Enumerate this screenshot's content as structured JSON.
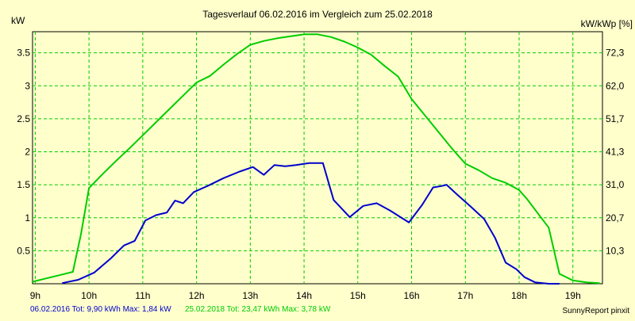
{
  "chart_data": {
    "type": "line",
    "title": "Tagesverlauf 06.02.2016 im Vergleich zum 25.02.2018",
    "ylabel_left": "kW",
    "ylabel_right": "kW/kWp [%]",
    "xlim": [
      8.95,
      19.55
    ],
    "ylim": [
      0,
      3.82
    ],
    "grid": true,
    "x_ticks": [
      {
        "value": 9,
        "label": "9h"
      },
      {
        "value": 10,
        "label": "10h"
      },
      {
        "value": 11,
        "label": "11h"
      },
      {
        "value": 12,
        "label": "12h"
      },
      {
        "value": 13,
        "label": "13h"
      },
      {
        "value": 14,
        "label": "14h"
      },
      {
        "value": 15,
        "label": "15h"
      },
      {
        "value": 16,
        "label": "16h"
      },
      {
        "value": 17,
        "label": "17h"
      },
      {
        "value": 18,
        "label": "18h"
      },
      {
        "value": 19,
        "label": "19h"
      }
    ],
    "y_ticks_left": [
      {
        "value": 0.5,
        "label": "0.5"
      },
      {
        "value": 1,
        "label": "1"
      },
      {
        "value": 1.5,
        "label": "1.5"
      },
      {
        "value": 2,
        "label": "2"
      },
      {
        "value": 2.5,
        "label": "2.5"
      },
      {
        "value": 3,
        "label": "3"
      },
      {
        "value": 3.5,
        "label": "3.5"
      }
    ],
    "y_ticks_right": [
      {
        "value": 0.5,
        "label": "10,3"
      },
      {
        "value": 1,
        "label": "20,7"
      },
      {
        "value": 1.5,
        "label": "31,0"
      },
      {
        "value": 2,
        "label": "41,3"
      },
      {
        "value": 2.5,
        "label": "51,7"
      },
      {
        "value": 3,
        "label": "62,0"
      },
      {
        "value": 3.5,
        "label": "72,3"
      }
    ],
    "series": [
      {
        "key": "2016",
        "color": "#0000cc",
        "x": [
          9.5,
          9.8,
          10.1,
          10.4,
          10.65,
          10.85,
          11.05,
          11.25,
          11.45,
          11.6,
          11.75,
          11.95,
          12.2,
          12.5,
          12.8,
          13.05,
          13.25,
          13.45,
          13.65,
          13.85,
          14.1,
          14.25,
          14.35,
          14.55,
          14.85,
          15.1,
          15.35,
          15.6,
          15.85,
          15.95,
          16.2,
          16.4,
          16.55,
          16.65,
          16.85,
          17.1,
          17.35,
          17.55,
          17.75,
          17.95,
          18.1,
          18.3,
          18.55,
          18.75
        ],
        "y": [
          0.01,
          0.06,
          0.17,
          0.38,
          0.58,
          0.65,
          0.96,
          1.04,
          1.08,
          1.26,
          1.22,
          1.39,
          1.48,
          1.6,
          1.7,
          1.77,
          1.65,
          1.8,
          1.78,
          1.8,
          1.83,
          1.83,
          1.83,
          1.27,
          1.01,
          1.18,
          1.22,
          1.11,
          0.98,
          0.93,
          1.2,
          1.46,
          1.48,
          1.5,
          1.35,
          1.17,
          0.98,
          0.7,
          0.32,
          0.22,
          0.1,
          0.02,
          0.0,
          0.0
        ]
      },
      {
        "key": "2018",
        "color": "#00cc00",
        "x": [
          8.95,
          9.2,
          9.45,
          9.7,
          9.85,
          10.0,
          10.25,
          10.5,
          10.75,
          11.0,
          11.25,
          11.5,
          11.75,
          12.0,
          12.25,
          12.5,
          12.75,
          13.0,
          13.25,
          13.5,
          13.75,
          14.0,
          14.25,
          14.5,
          14.75,
          15.0,
          15.25,
          15.5,
          15.75,
          16.0,
          16.25,
          16.5,
          16.75,
          17.0,
          17.25,
          17.5,
          17.75,
          18.0,
          18.15,
          18.3,
          18.55,
          18.75,
          19.0,
          19.25,
          19.5
        ],
        "y": [
          0.03,
          0.08,
          0.13,
          0.18,
          0.75,
          1.45,
          1.66,
          1.86,
          2.05,
          2.25,
          2.45,
          2.65,
          2.85,
          3.05,
          3.15,
          3.32,
          3.48,
          3.62,
          3.68,
          3.72,
          3.75,
          3.78,
          3.78,
          3.74,
          3.67,
          3.58,
          3.47,
          3.3,
          3.14,
          2.8,
          2.55,
          2.3,
          2.05,
          1.82,
          1.72,
          1.6,
          1.53,
          1.42,
          1.28,
          1.12,
          0.85,
          0.15,
          0.05,
          0.02,
          0.01
        ]
      }
    ],
    "footer": {
      "series1_text": "06.02.2016 Tot: 9,90 kWh Max: 1,84 kW",
      "series2_text": "25.02.2018 Tot: 23,47 kWh Max: 3,78 kW",
      "credit": "SunnyReport pinxit"
    }
  }
}
